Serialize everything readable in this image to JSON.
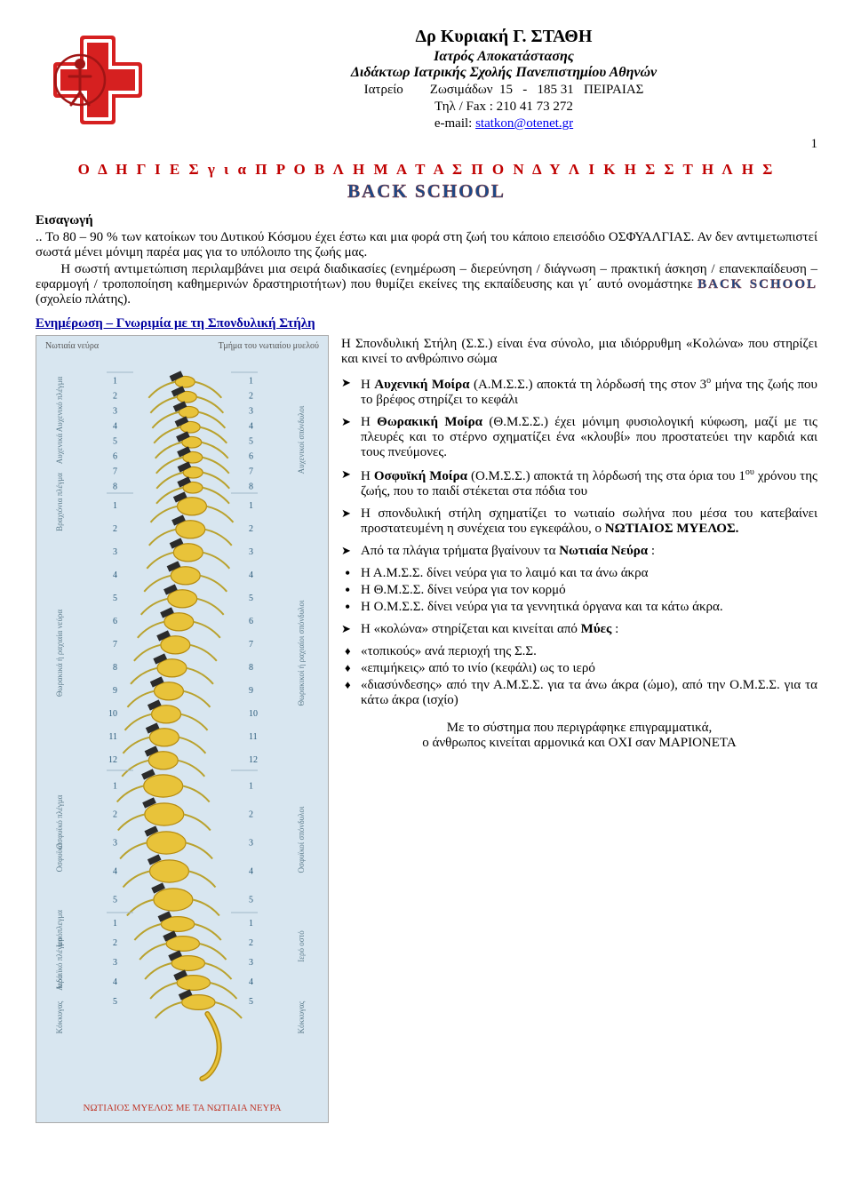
{
  "header": {
    "name": "Δρ  Κυριακή  Γ.  ΣΤΑΘΗ",
    "sub1": "Ιατρός Αποκατάστασης",
    "sub2": "Διδάκτωρ Ιατρικής Σχολής Πανεπιστημίου Αθηνών",
    "office": "Ιατρείο        Ζωσιμάδων  15   -   185 31   ΠΕΙΡΑΙΑΣ",
    "phone": "Τηλ / Fax : 210 41 73 272",
    "email_label": "e-mail: ",
    "email": "statkon@otenet.gr",
    "page_number": "1"
  },
  "titles": {
    "main": "Ο Δ Η Γ Ι Ε Σ   γ ι α   Π Ρ Ο Β Λ Η Μ Α Τ Α    Σ Π Ο Ν Δ Υ Λ Ι Κ Η Σ   Σ Τ Η Λ Η Σ",
    "sub": "BACK  SCHOOL"
  },
  "intro": {
    "head": "Εισαγωγή",
    "p1": ".. Το 80 – 90 % των κατοίκων του Δυτικού Κόσμου έχει έστω και μια φορά στη ζωή του κάποιο επεισόδιο ΟΣΦΥΑΛΓΙΑΣ. Αν δεν αντιμετωπιστεί σωστά μένει μόνιμη παρέα μας για το υπόλοιπο της ζωής μας.",
    "p2a": "      Η σωστή αντιμετώπιση περιλαμβάνει μια σειρά διαδικασίες (ενημέρωση – διερεύνηση / διάγνωση – πρακτική άσκηση / επανεκπαίδευση – εφαρμογή / τροποποίηση καθημερινών δραστηριοτήτων) που θυμίζει εκείνες της εκπαίδευσης και γι΄ αυτό ονομάστηκε ",
    "p2_inline": "BACK  SCHOOL",
    "p2b": " (σχολείο πλάτης)."
  },
  "info": {
    "head": "Ενημέρωση – Γνωριμία με τη Σπονδυλική Στήλη",
    "p_intro": "Η Σπονδυλική Στήλη (Σ.Σ.) είναι ένα σύνολο, μια ιδιόρρυθμη «Κολώνα» που στηρίζει και κινεί το ανθρώπινο σώμα",
    "b1_a": "Η ",
    "b1_bold": "Αυχενική Μοίρα",
    "b1_b": " (Α.Μ.Σ.Σ.) αποκτά τη λόρδωσή της στον 3",
    "b1_sup": "ο",
    "b1_c": " μήνα της ζωής που το βρέφος στηρίζει το κεφάλι",
    "b2_a": "Η ",
    "b2_bold": "Θωρακική Μοίρα",
    "b2_b": " (Θ.Μ.Σ.Σ.) έχει μόνιμη φυσιολογική κύφωση, μαζί με τις πλευρές και το στέρνο σχηματίζει ένα «κλουβί» που προστατεύει την καρδιά και τους πνεύμονες.",
    "b3_a": "Η ",
    "b3_bold": "Οσφυϊκή  Μοίρα",
    "b3_b": " (Ο.Μ.Σ.Σ.) αποκτά τη λόρδωσή της στα όρια του 1",
    "b3_sup": "ου",
    "b3_c": " χρόνου της ζωής, που το παιδί στέκεται στα πόδια του",
    "b4_a": "Η σπονδυλική στήλη σχηματίζει το ",
    "b4_mid": "νωτιαίο σωλήνα",
    "b4_b": " που μέσα του κατεβαίνει προστατευμένη η συνέχεια του εγκεφάλου, ο ",
    "b4_bold": "ΝΩΤΙΑΙΟΣ ΜΥΕΛΟΣ.",
    "b5_a": "Από τα πλάγια τρήματα βγαίνουν τα ",
    "b5_bold": "Νωτιαία Νεύρα",
    "b5_b": "  :",
    "b5_i1": "Η Α.Μ.Σ.Σ. δίνει νεύρα για το λαιμό και τα άνω άκρα",
    "b5_i2": "Η Θ.Μ.Σ.Σ. δίνει νεύρα για τον κορμό",
    "b5_i3": "Η Ο.Μ.Σ.Σ. δίνει νεύρα για τα γεννητικά όργανα και τα κάτω άκρα.",
    "b6_a": "Η «κολώνα» στηρίζεται και κινείται από ",
    "b6_bold": "Μύες",
    "b6_b": " :",
    "b6_i1": "«τοπικούς» ανά περιοχή της Σ.Σ.",
    "b6_i2": "«επιμήκεις» από το ινίο (κεφάλι) ως το ιερό",
    "b6_i3": "«διασύνδεσης» από την Α.Μ.Σ.Σ. για τα άνω άκρα (ώμο), από την Ο.Μ.Σ.Σ. για τα κάτω άκρα (ισχίο)",
    "closing1": "Με το σύστημα που περιγράφηκε επιγραμματικά,",
    "closing2": "ο άνθρωπος κινείται αρμονικά και ΟΧΙ σαν ΜΑΡΙΟΝΕΤΑ"
  },
  "figure": {
    "top_left": "Νωτιαία νεύρα",
    "top_right": "Τμήμα του νωτιαίου μυελού",
    "caption": "ΝΩΤΙΑΙΟΣ ΜΥΕΛΟΣ ΜΕ ΤΑ ΝΩΤΙΑΙΑ ΝΕΥΡΑ",
    "labels_left": [
      "Αυχενικό πλέγμα",
      "Αυχενικά",
      "Βραχιόνια πλέγμα",
      "Θωρακικά ή ραχιαία νεύρα",
      "Οσφυϊκό πλέγμα",
      "Οσφυϊκά",
      "Ιερόπλεγμα",
      "Αιδοιϊκό πλέγμα",
      "Ιερά",
      "Κόκκυγας"
    ],
    "labels_right": [
      "Αυχενικοί σπόνδυλοι",
      "Θωρακικοί ή ραχιαίοι σπόνδυλοι",
      "Οσφυϊκοί σπόνδυλοι",
      "Ιερό οστό",
      "Κόκκυγας"
    ],
    "spine": {
      "color_vertebra": "#e8c33a",
      "color_edge": "#b58b10",
      "color_disc": "#2b2b2b",
      "color_nerve": "#b9a22e",
      "cervical": [
        1,
        2,
        3,
        4,
        5,
        6,
        7,
        8
      ],
      "thoracic": [
        1,
        2,
        3,
        4,
        5,
        6,
        7,
        8,
        9,
        10,
        11,
        12
      ],
      "lumbar": [
        1,
        2,
        3,
        4,
        5
      ],
      "sacral": [
        1,
        2,
        3,
        4,
        5
      ]
    }
  },
  "colors": {
    "title_red": "#c00000",
    "title_blue": "#1a4a8a",
    "link_blue": "#0000ee",
    "head_blue": "#0000a0"
  }
}
